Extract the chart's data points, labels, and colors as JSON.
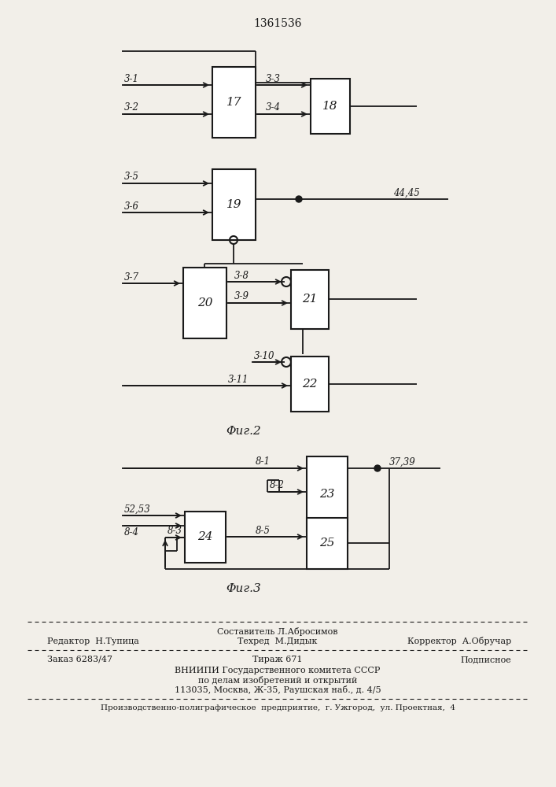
{
  "title": "1361536",
  "fig2_label": "Φиг.2",
  "fig3_label": "Φиг.3",
  "bg_color": "#f2efe9",
  "line_color": "#1a1a1a",
  "box_color": "#ffffff",
  "footer": {
    "line1_center": "Составитель Л.Абросимов",
    "line2_left": "Редактор  Н.Тупица",
    "line2_center": "Техред  М.Дидык",
    "line2_right": "Корректор  А.Обручар",
    "line3_left": "Заказ 6283/47",
    "line3_center": "Тираж 671",
    "line3_right": "Подписное",
    "line4": "ВНИИПИ Государственного комитета СССР",
    "line5": "по делам изобретений и открытий",
    "line6": "113035, Москва, Ж-35, Раушская наб., д. 4/5",
    "line7": "Производственно-полиграфическое  предприятие,  г. Ужгород,  ул. Проектная,  4"
  }
}
